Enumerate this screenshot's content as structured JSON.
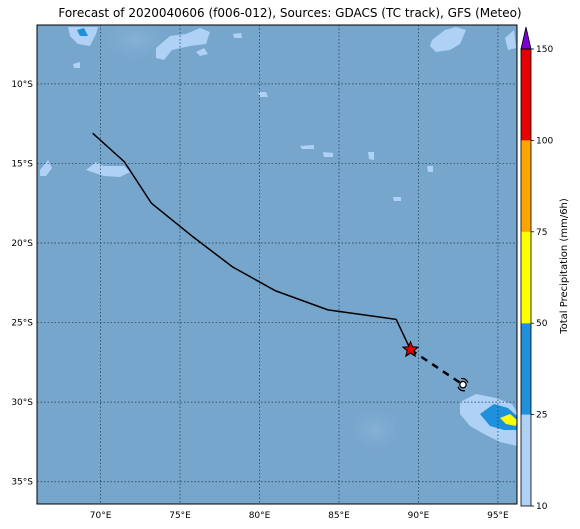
{
  "title": "Forecast of 2020040606 (f006-012), Sources: GDACS (TC track), GFS (Meteo)",
  "map": {
    "lon_range": [
      66,
      96.2
    ],
    "lat_range": [
      -36.4,
      -6.3
    ],
    "lon_ticks": [
      {
        "value": 70,
        "label": "70°E"
      },
      {
        "value": 75,
        "label": "75°E"
      },
      {
        "value": 80,
        "label": "80°E"
      },
      {
        "value": 85,
        "label": "85°E"
      },
      {
        "value": 90,
        "label": "90°E"
      },
      {
        "value": 95,
        "label": "95°E"
      }
    ],
    "lat_ticks": [
      {
        "value": -10,
        "label": "10°S"
      },
      {
        "value": -15,
        "label": "15°S"
      },
      {
        "value": -20,
        "label": "20°S"
      },
      {
        "value": -25,
        "label": "25°S"
      },
      {
        "value": -30,
        "label": "30°S"
      },
      {
        "value": -35,
        "label": "35°S"
      }
    ],
    "gridlines": true,
    "ocean_color": "#77a6cd"
  },
  "track": {
    "past": [
      [
        69.5,
        -13.1
      ],
      [
        71.5,
        -14.9
      ],
      [
        73.2,
        -17.5
      ],
      [
        75.8,
        -19.6
      ],
      [
        78.3,
        -21.5
      ],
      [
        81.0,
        -23.0
      ],
      [
        84.3,
        -24.2
      ],
      [
        88.6,
        -24.8
      ],
      [
        89.5,
        -26.7
      ]
    ],
    "current_position": [
      89.5,
      -26.7
    ],
    "forecast": [
      [
        89.5,
        -26.7
      ],
      [
        92.8,
        -28.9
      ]
    ],
    "forecast_position": [
      92.8,
      -28.9
    ],
    "current_marker_color": "#e00000"
  },
  "colorbar": {
    "label": "Total Precipitation (mm/6h)",
    "ticks": [
      "10",
      "25",
      "50",
      "75",
      "100",
      "150"
    ],
    "colors": [
      "#aed1f5",
      "#1e90dc",
      "#ffff00",
      "#ffa500",
      "#e60000",
      "#7b00d4"
    ]
  }
}
